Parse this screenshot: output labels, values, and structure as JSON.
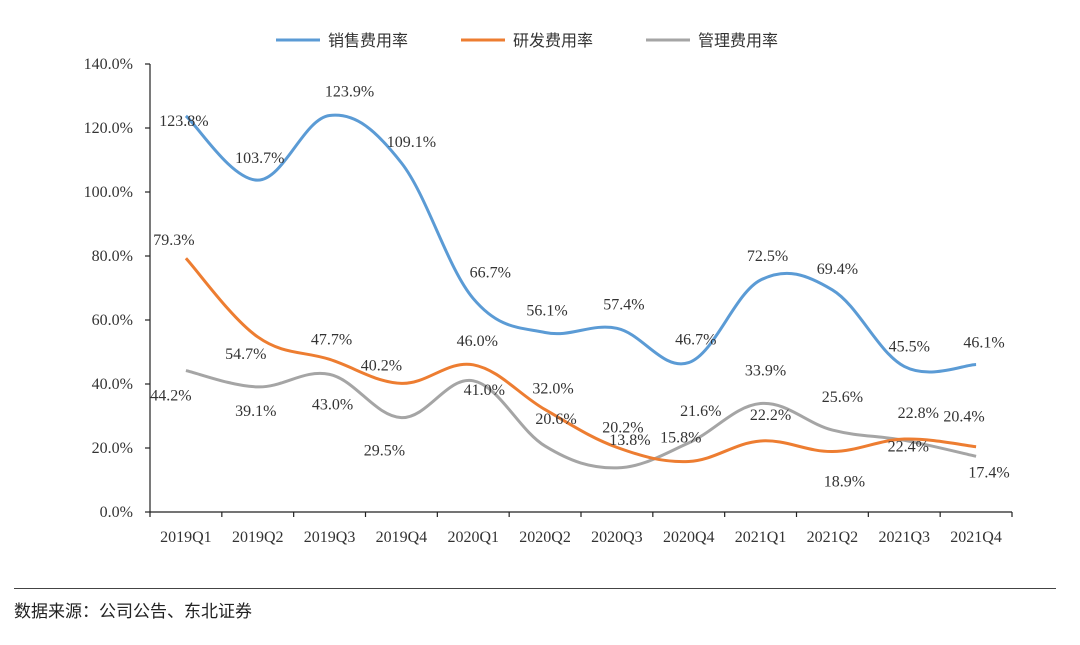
{
  "chart_data": {
    "type": "line",
    "categories": [
      "2019Q1",
      "2019Q2",
      "2019Q3",
      "2019Q4",
      "2020Q1",
      "2020Q2",
      "2020Q3",
      "2020Q4",
      "2021Q1",
      "2021Q2",
      "2021Q3",
      "2021Q4"
    ],
    "series": [
      {
        "name": "销售费用率",
        "color": "#5B9BD5",
        "values": [
          123.8,
          103.7,
          123.9,
          109.1,
          66.7,
          56.1,
          57.4,
          46.7,
          72.5,
          69.4,
          45.5,
          46.1
        ],
        "labels": [
          "123.8%",
          "103.7%",
          "123.9%",
          "109.1%",
          "66.7%",
          "56.1%",
          "57.4%",
          "46.7%",
          "72.5%",
          "69.4%",
          "45.5%",
          "46.1%"
        ]
      },
      {
        "name": "研发费用率",
        "color": "#ED7D31",
        "values": [
          79.3,
          54.7,
          47.7,
          40.2,
          46.0,
          32.0,
          20.2,
          15.8,
          22.2,
          18.9,
          22.8,
          20.4
        ],
        "labels": [
          "79.3%",
          "54.7%",
          "47.7%",
          "40.2%",
          "46.0%",
          "32.0%",
          "20.2%",
          "15.8%",
          "22.2%",
          "18.9%",
          "22.8%",
          "20.4%"
        ]
      },
      {
        "name": "管理费用率",
        "color": "#A5A5A5",
        "values": [
          44.2,
          39.1,
          43.0,
          29.5,
          41.0,
          20.6,
          13.8,
          21.6,
          33.9,
          25.6,
          22.4,
          17.4
        ],
        "labels": [
          "44.2%",
          "39.1%",
          "43.0%",
          "29.5%",
          "41.0%",
          "20.6%",
          "13.8%",
          "21.6%",
          "33.9%",
          "25.6%",
          "22.4%",
          "17.4%"
        ]
      }
    ],
    "y_ticks": [
      "0.0%",
      "20.0%",
      "40.0%",
      "60.0%",
      "80.0%",
      "100.0%",
      "120.0%",
      "140.0%"
    ],
    "ylim": [
      0,
      140
    ],
    "legend": "top"
  },
  "footer": {
    "source": "数据来源：公司公告、东北证券"
  }
}
